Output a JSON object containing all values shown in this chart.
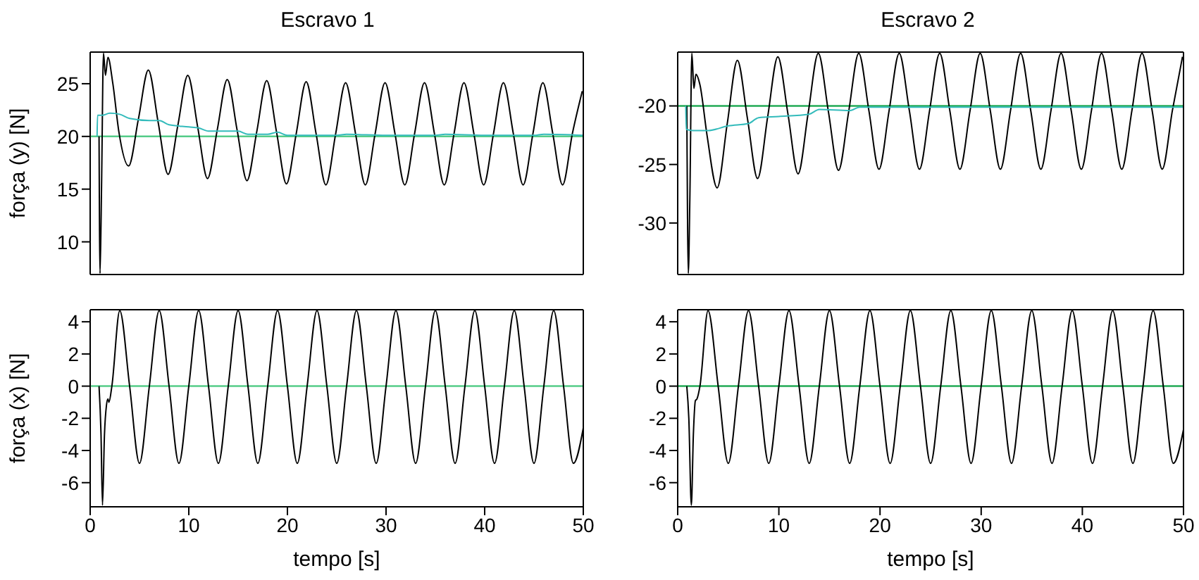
{
  "chart_data": [
    {
      "type": "line",
      "title": "Escravo 1",
      "ylabel": "força (y) [N]",
      "xlim": [
        0,
        50
      ],
      "xticks": [
        0,
        10,
        20,
        30,
        40,
        50
      ],
      "ylim": [
        6.9,
        28
      ],
      "yticks": [
        10,
        15,
        20,
        25
      ],
      "tick_labels": "y",
      "grid": false,
      "legend": false,
      "ref_lines": [
        {
          "axis": "y",
          "value": 20,
          "color": "#55cc88"
        }
      ],
      "series": [
        {
          "color": "#000000",
          "x": [
            0.9,
            1.0,
            1.15,
            1.35,
            1.55,
            1.8,
            2.3,
            2.9,
            3.9,
            4.9,
            5.9,
            6.9,
            7.9,
            8.9,
            9.9,
            10.9,
            11.9,
            12.9,
            13.9,
            14.9,
            15.9,
            16.9,
            17.9,
            18.9,
            19.9,
            20.9,
            21.9,
            22.9,
            23.9,
            24.9,
            25.9,
            26.9,
            27.9,
            28.9,
            29.9,
            30.9,
            31.9,
            32.9,
            33.9,
            34.9,
            35.9,
            36.9,
            37.9,
            38.9,
            39.9,
            40.9,
            41.9,
            42.9,
            43.9,
            44.9,
            45.9,
            46.9,
            47.9,
            48.9,
            49.9
          ],
          "values": [
            20,
            7,
            15,
            27.9,
            25.8,
            27.5,
            25,
            20.5,
            17.2,
            21.7,
            26.3,
            21.3,
            16.4,
            21.1,
            25.8,
            20.9,
            16.0,
            20.7,
            25.4,
            20.6,
            15.8,
            20.5,
            25.3,
            20.4,
            15.5,
            20.3,
            25.2,
            20.3,
            15.4,
            20.3,
            25.1,
            20.3,
            15.4,
            20.3,
            25.1,
            20.3,
            15.4,
            20.3,
            25.1,
            20.3,
            15.4,
            20.3,
            25.1,
            20.3,
            15.4,
            20.3,
            25.1,
            20.3,
            15.4,
            20.3,
            25.1,
            20.3,
            15.4,
            20.3,
            24.3
          ]
        },
        {
          "color": "#33bbbb",
          "x": [
            0.7,
            0.75,
            1.2,
            2,
            3,
            4,
            6,
            7,
            8,
            10,
            11,
            12,
            14,
            15,
            16,
            18,
            19,
            20,
            25,
            26,
            30,
            35,
            36,
            40,
            45,
            46,
            50
          ],
          "values": [
            20,
            22,
            22,
            22.2,
            22.1,
            21.7,
            21.5,
            21.5,
            21.1,
            20.9,
            20.8,
            20.5,
            20.5,
            20.5,
            20.2,
            20.2,
            20.4,
            20.1,
            20.1,
            20.2,
            20.1,
            20.1,
            20.2,
            20.1,
            20.1,
            20.2,
            20.1
          ]
        }
      ]
    },
    {
      "type": "line",
      "title": "Escravo 2",
      "xlim": [
        0,
        50
      ],
      "xticks": [
        0,
        10,
        20,
        30,
        40,
        50
      ],
      "ylim": [
        -34.4,
        -15.4
      ],
      "yticks": [
        -30,
        -25,
        -20
      ],
      "tick_labels": "y",
      "grid": false,
      "legend": false,
      "ref_lines": [
        {
          "axis": "y",
          "value": -20,
          "color": "#22aa55"
        }
      ],
      "series": [
        {
          "color": "#000000",
          "x": [
            0.9,
            1.05,
            1.2,
            1.4,
            1.6,
            1.8,
            2.2,
            2.9,
            3.9,
            4.9,
            5.9,
            6.9,
            7.9,
            8.9,
            9.9,
            10.9,
            11.9,
            12.9,
            13.9,
            14.9,
            15.9,
            16.9,
            17.9,
            18.9,
            19.9,
            20.9,
            21.9,
            22.9,
            23.9,
            24.9,
            25.9,
            26.9,
            27.9,
            28.9,
            29.9,
            30.9,
            31.9,
            32.9,
            33.9,
            34.9,
            35.9,
            36.9,
            37.9,
            38.9,
            39.9,
            40.9,
            41.9,
            42.9,
            43.9,
            44.9,
            45.9,
            46.9,
            47.9,
            48.9,
            49.9
          ],
          "values": [
            -20,
            -34.3,
            -28,
            -15.5,
            -18.5,
            -17.3,
            -18.2,
            -22.5,
            -27.0,
            -21.5,
            -16.1,
            -21.1,
            -26.2,
            -20.9,
            -15.8,
            -20.7,
            -25.8,
            -20.6,
            -15.5,
            -20.5,
            -25.5,
            -20.5,
            -15.5,
            -20.4,
            -25.4,
            -20.4,
            -15.5,
            -20.4,
            -25.4,
            -20.4,
            -15.5,
            -20.4,
            -25.4,
            -20.4,
            -15.5,
            -20.4,
            -25.4,
            -20.4,
            -15.5,
            -20.4,
            -25.4,
            -20.4,
            -15.5,
            -20.4,
            -25.4,
            -20.4,
            -15.5,
            -20.4,
            -25.4,
            -20.4,
            -15.5,
            -20.4,
            -25.4,
            -20.4,
            -15.8
          ]
        },
        {
          "color": "#33bbbb",
          "x": [
            0.8,
            0.85,
            1.5,
            3,
            5,
            7,
            8,
            10,
            13,
            14,
            17,
            18,
            50
          ],
          "values": [
            -20,
            -22,
            -22.1,
            -22.1,
            -21.7,
            -21.5,
            -21,
            -20.9,
            -20.7,
            -20.3,
            -20.4,
            -20.1,
            -20.1
          ]
        }
      ]
    },
    {
      "type": "line",
      "xlabel": "tempo [s]",
      "ylabel": "força (x) [N]",
      "xlim": [
        0,
        50
      ],
      "xticks": [
        0,
        10,
        20,
        30,
        40,
        50
      ],
      "ylim": [
        -7.5,
        4.75
      ],
      "yticks": [
        -6,
        -4,
        -2,
        0,
        2,
        4
      ],
      "grid": false,
      "legend": false,
      "ref_lines": [
        {
          "axis": "y",
          "value": 0,
          "color": "#55cc88"
        }
      ],
      "series": [
        {
          "color": "#000000",
          "x": [
            0.9,
            1.1,
            1.25,
            1.45,
            1.65,
            1.8,
            1.9,
            2.2,
            3,
            4,
            5,
            6,
            7,
            8,
            9,
            10,
            11,
            12,
            13,
            14,
            15,
            16,
            17,
            18,
            19,
            20,
            21,
            22,
            23,
            24,
            25,
            26,
            27,
            28,
            29,
            30,
            31,
            32,
            33,
            34,
            35,
            36,
            37,
            38,
            39,
            40,
            41,
            42,
            43,
            44,
            45,
            46,
            47,
            48,
            49,
            50
          ],
          "values": [
            0,
            -3,
            -7.4,
            -3,
            -1.2,
            -0.8,
            -1,
            0,
            4.7,
            0,
            -4.8,
            0,
            4.7,
            0,
            -4.8,
            0,
            4.7,
            0,
            -4.8,
            0,
            4.7,
            0,
            -4.8,
            0,
            4.7,
            0,
            -4.8,
            0,
            4.7,
            0,
            -4.8,
            0,
            4.7,
            0,
            -4.8,
            0,
            4.7,
            0,
            -4.8,
            0,
            4.7,
            0,
            -4.8,
            0,
            4.7,
            0,
            -4.8,
            0,
            4.7,
            0,
            -4.8,
            0,
            4.7,
            0,
            -4.8,
            -2.6
          ]
        }
      ]
    },
    {
      "type": "line",
      "xlabel": "tempo [s]",
      "xlim": [
        0,
        50
      ],
      "xticks": [
        0,
        10,
        20,
        30,
        40,
        50
      ],
      "ylim": [
        -7.5,
        4.75
      ],
      "yticks": [
        -6,
        -4,
        -2,
        0,
        2,
        4
      ],
      "grid": false,
      "legend": false,
      "ref_lines": [
        {
          "axis": "y",
          "value": 0,
          "color": "#22aa55"
        }
      ],
      "series": [
        {
          "color": "#000000",
          "x": [
            0.9,
            1.1,
            1.35,
            1.55,
            1.75,
            1.9,
            2.2,
            3,
            4,
            5,
            6,
            7,
            8,
            9,
            10,
            11,
            12,
            13,
            14,
            15,
            16,
            17,
            18,
            19,
            20,
            21,
            22,
            23,
            24,
            25,
            26,
            27,
            28,
            29,
            30,
            31,
            32,
            33,
            34,
            35,
            36,
            37,
            38,
            39,
            40,
            41,
            42,
            43,
            44,
            45,
            46,
            47,
            48,
            49,
            50
          ],
          "values": [
            0,
            -2,
            -7.4,
            -3,
            -0.9,
            -0.8,
            0,
            4.7,
            0,
            -4.8,
            0,
            4.7,
            0,
            -4.8,
            0,
            4.7,
            0,
            -4.8,
            0,
            4.7,
            0,
            -4.8,
            0,
            4.7,
            0,
            -4.8,
            0,
            4.7,
            0,
            -4.8,
            0,
            4.7,
            0,
            -4.8,
            0,
            4.7,
            0,
            -4.8,
            0,
            4.7,
            0,
            -4.8,
            0,
            4.7,
            0,
            -4.8,
            0,
            4.7,
            0,
            -4.8,
            0,
            4.7,
            0,
            -4.8,
            -2.7
          ]
        }
      ]
    }
  ]
}
